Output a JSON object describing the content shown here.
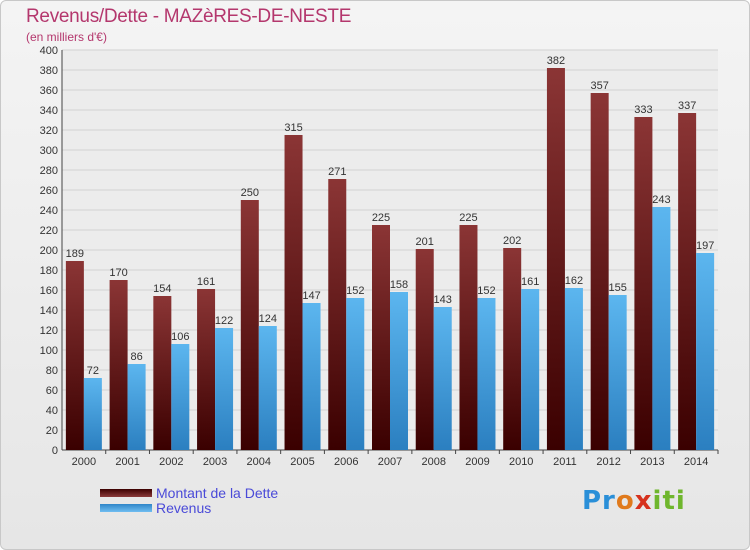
{
  "header": {
    "title": "Revenus/Dette - MAZèRES-DE-NESTE",
    "subtitle": "(en milliers d'€)"
  },
  "chart_data": {
    "type": "bar",
    "categories": [
      "2000",
      "2001",
      "2002",
      "2003",
      "2004",
      "2005",
      "2006",
      "2007",
      "2008",
      "2009",
      "2010",
      "2011",
      "2012",
      "2013",
      "2014"
    ],
    "series": [
      {
        "name": "Montant de la Dette",
        "color": "#7a1f1f",
        "values": [
          189,
          170,
          154,
          161,
          250,
          315,
          271,
          225,
          201,
          225,
          202,
          382,
          357,
          333,
          337
        ]
      },
      {
        "name": "Revenus",
        "color": "#4aa3e0",
        "values": [
          72,
          86,
          106,
          122,
          124,
          147,
          152,
          158,
          143,
          152,
          161,
          162,
          155,
          243,
          197
        ]
      }
    ],
    "ylim": [
      0,
      400
    ],
    "ytick_step": 20,
    "grid": true,
    "legend_position": "bottom-left"
  },
  "brand": {
    "letters": [
      "Pr",
      "o",
      "x",
      "iti"
    ]
  }
}
